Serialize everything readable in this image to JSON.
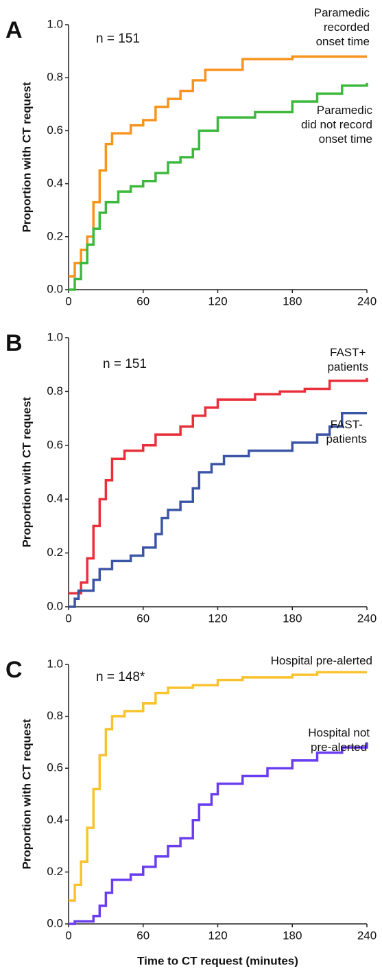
{
  "chart_data": [
    {
      "type": "line",
      "step": true,
      "panel_label": "A",
      "annotation": "n = 151",
      "ylabel": "Proportion with CT request",
      "xlim": [
        0,
        240
      ],
      "xticks": [
        0,
        60,
        120,
        180,
        240
      ],
      "ylim": [
        0,
        1
      ],
      "yticks": [
        {
          "value": 0,
          "label": "0.0"
        },
        0.2,
        0.4,
        0.6,
        0.8,
        {
          "value": 1,
          "label": "1.0"
        }
      ],
      "series": [
        {
          "name": "Paramedic\nrecorded\nonset time",
          "color": "#f7931e",
          "x": [
            0,
            5,
            10,
            15,
            20,
            25,
            30,
            35,
            50,
            60,
            70,
            80,
            90,
            100,
            110,
            140,
            180,
            240
          ],
          "values": [
            0.05,
            0.1,
            0.15,
            0.2,
            0.33,
            0.45,
            0.55,
            0.59,
            0.62,
            0.64,
            0.69,
            0.72,
            0.75,
            0.79,
            0.83,
            0.87,
            0.88,
            0.88
          ]
        },
        {
          "name": "Paramedic\ndid not record\nonset time",
          "color": "#3cb93c",
          "x": [
            0,
            5,
            10,
            15,
            20,
            25,
            30,
            40,
            50,
            60,
            70,
            80,
            90,
            100,
            105,
            120,
            150,
            180,
            200,
            220,
            240
          ],
          "values": [
            0,
            0.04,
            0.1,
            0.17,
            0.23,
            0.29,
            0.33,
            0.37,
            0.39,
            0.41,
            0.44,
            0.48,
            0.5,
            0.53,
            0.6,
            0.65,
            0.67,
            0.71,
            0.74,
            0.77,
            0.78
          ]
        }
      ]
    },
    {
      "type": "line",
      "step": true,
      "panel_label": "B",
      "annotation": "n = 151",
      "ylabel": "Proportion with CT request",
      "xlim": [
        0,
        240
      ],
      "xticks": [
        0,
        60,
        120,
        180,
        240
      ],
      "ylim": [
        0,
        1
      ],
      "yticks": [
        {
          "value": 0,
          "label": "0.0"
        },
        0.2,
        0.4,
        0.6,
        0.8,
        {
          "value": 1,
          "label": "1.0"
        }
      ],
      "series": [
        {
          "name": "FAST+\npatients",
          "color": "#e8303a",
          "x": [
            0,
            10,
            15,
            20,
            25,
            30,
            35,
            45,
            60,
            70,
            90,
            100,
            110,
            120,
            150,
            170,
            190,
            210,
            240
          ],
          "values": [
            0.05,
            0.09,
            0.18,
            0.3,
            0.4,
            0.47,
            0.55,
            0.58,
            0.6,
            0.64,
            0.67,
            0.71,
            0.74,
            0.77,
            0.79,
            0.8,
            0.81,
            0.84,
            0.85
          ]
        },
        {
          "name": "FAST-\npatients",
          "color": "#3b55a6",
          "x": [
            0,
            5,
            8,
            20,
            25,
            35,
            50,
            60,
            70,
            75,
            80,
            90,
            100,
            105,
            115,
            125,
            145,
            180,
            200,
            210,
            220,
            240
          ],
          "values": [
            0,
            0.03,
            0.06,
            0.1,
            0.14,
            0.17,
            0.19,
            0.22,
            0.27,
            0.33,
            0.36,
            0.39,
            0.44,
            0.5,
            0.53,
            0.56,
            0.58,
            0.61,
            0.64,
            0.67,
            0.72,
            0.72
          ]
        }
      ]
    },
    {
      "type": "line",
      "step": true,
      "panel_label": "C",
      "annotation": "n = 148*",
      "ylabel": "Proportion with CT request",
      "xlabel": "Time to CT request (minutes)",
      "xlim": [
        0,
        240
      ],
      "xticks": [
        0,
        60,
        120,
        180,
        240
      ],
      "ylim": [
        0,
        1
      ],
      "yticks": [
        {
          "value": 0,
          "label": "0.0"
        },
        0.2,
        0.4,
        0.6,
        0.8,
        {
          "value": 1,
          "label": "1.0"
        }
      ],
      "series": [
        {
          "name": "Hospital pre-alerted",
          "color": "#f9c22e",
          "x": [
            0,
            5,
            10,
            15,
            20,
            25,
            30,
            35,
            45,
            60,
            70,
            80,
            100,
            120,
            140,
            180,
            200,
            240
          ],
          "values": [
            0.09,
            0.15,
            0.24,
            0.37,
            0.52,
            0.65,
            0.75,
            0.8,
            0.82,
            0.85,
            0.89,
            0.91,
            0.92,
            0.94,
            0.95,
            0.96,
            0.97,
            0.97
          ]
        },
        {
          "name": "Hospital not\npre-alerted",
          "color": "#6a3df0",
          "x": [
            0,
            5,
            20,
            25,
            30,
            35,
            50,
            60,
            70,
            80,
            90,
            100,
            105,
            115,
            120,
            140,
            160,
            180,
            200,
            220,
            240
          ],
          "values": [
            0,
            0.01,
            0.03,
            0.07,
            0.12,
            0.17,
            0.19,
            0.22,
            0.26,
            0.3,
            0.33,
            0.4,
            0.46,
            0.5,
            0.54,
            0.57,
            0.6,
            0.63,
            0.66,
            0.68,
            0.7
          ]
        }
      ]
    }
  ]
}
